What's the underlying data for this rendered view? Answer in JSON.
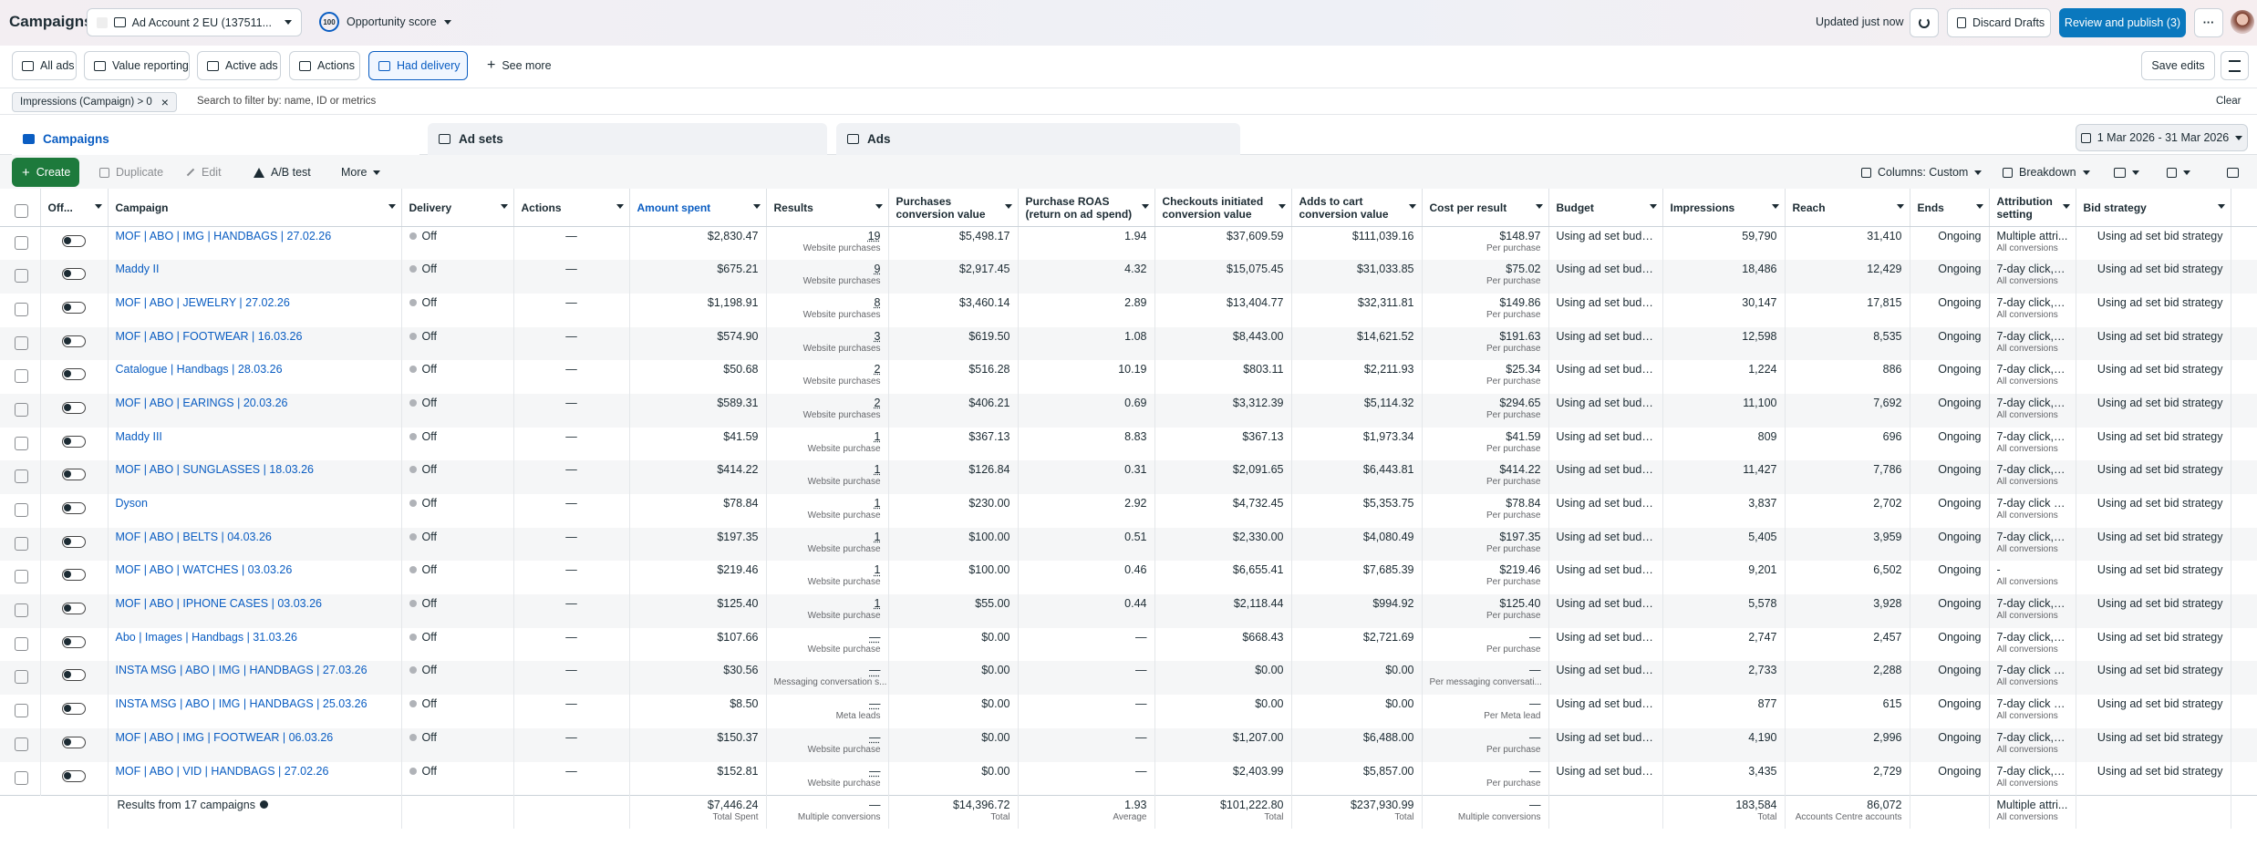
{
  "header": {
    "title": "Campaigns",
    "account": "Ad Account 2 EU (137511...",
    "score": "100",
    "opportunity": "Opportunity score",
    "updated": "Updated just now",
    "discard": "Discard Drafts",
    "review": "Review and publish (3)"
  },
  "toolbar": {
    "filters": [
      "All ads",
      "Value reporting",
      "Active ads",
      "Actions",
      "Had delivery"
    ],
    "see_more": "See more",
    "save": "Save edits"
  },
  "filter_bar": {
    "chip": "Impressions (Campaign) > 0",
    "placeholder": "Search to filter by: name, ID or metrics",
    "clear": "Clear"
  },
  "tabs": {
    "items": [
      "Campaigns",
      "Ad sets",
      "Ads"
    ],
    "date_range": "1 Mar 2026 - 31 Mar 2026"
  },
  "actions_bar": {
    "create": "Create",
    "duplicate": "Duplicate",
    "edit": "Edit",
    "ab_test": "A/B test",
    "more": "More",
    "columns": "Columns: Custom",
    "breakdown": "Breakdown"
  },
  "table": {
    "columns": [
      "Off...",
      "Campaign",
      "Delivery",
      "Actions",
      "Amount spent",
      "Results",
      "Purchases conversion value",
      "Purchase ROAS (return on ad spend)",
      "Checkouts initiated conversion value",
      "Adds to cart conversion value",
      "Cost per result",
      "Budget",
      "Impressions",
      "Reach",
      "Ends",
      "Attribution setting",
      "Bid strategy"
    ],
    "rows": [
      [
        "MOF | ABO | IMG | HANDBAGS | 27.02.26",
        "Off",
        "—",
        "$2,830.47",
        "19",
        "Website purchases",
        "$5,498.17",
        "1.94",
        "$37,609.59",
        "$111,039.16",
        "$148.97",
        "Per purchase",
        "Using ad set budget",
        "59,790",
        "31,410",
        "Ongoing",
        "Multiple attri...",
        "All conversions",
        "Using ad set bid strategy"
      ],
      [
        "Maddy II",
        "Off",
        "—",
        "$675.21",
        "9",
        "Website purchases",
        "$2,917.45",
        "4.32",
        "$15,075.45",
        "$31,033.85",
        "$75.02",
        "Per purchase",
        "Using ad set budget",
        "18,486",
        "12,429",
        "Ongoing",
        "7-day click, 1-...",
        "All conversions",
        "Using ad set bid strategy"
      ],
      [
        "MOF | ABO | JEWELRY | 27.02.26",
        "Off",
        "—",
        "$1,198.91",
        "8",
        "Website purchases",
        "$3,460.14",
        "2.89",
        "$13,404.77",
        "$32,311.81",
        "$149.86",
        "Per purchase",
        "Using ad set budget",
        "30,147",
        "17,815",
        "Ongoing",
        "7-day click, 1-...",
        "All conversions",
        "Using ad set bid strategy"
      ],
      [
        "MOF | ABO | FOOTWEAR | 16.03.26",
        "Off",
        "—",
        "$574.90",
        "3",
        "Website purchases",
        "$619.50",
        "1.08",
        "$8,443.00",
        "$14,621.52",
        "$191.63",
        "Per purchase",
        "Using ad set budget",
        "12,598",
        "8,535",
        "Ongoing",
        "7-day click, 1-...",
        "All conversions",
        "Using ad set bid strategy"
      ],
      [
        "Catalogue | Handbags | 28.03.26",
        "Off",
        "—",
        "$50.68",
        "2",
        "Website purchases",
        "$516.28",
        "10.19",
        "$803.11",
        "$2,211.93",
        "$25.34",
        "Per purchase",
        "Using ad set budget",
        "1,224",
        "886",
        "Ongoing",
        "7-day click, 1-...",
        "All conversions",
        "Using ad set bid strategy"
      ],
      [
        "MOF | ABO | EARINGS | 20.03.26",
        "Off",
        "—",
        "$589.31",
        "2",
        "Website purchases",
        "$406.21",
        "0.69",
        "$3,312.39",
        "$5,114.32",
        "$294.65",
        "Per purchase",
        "Using ad set budget",
        "11,100",
        "7,692",
        "Ongoing",
        "7-day click, 1-...",
        "All conversions",
        "Using ad set bid strategy"
      ],
      [
        "Maddy III",
        "Off",
        "—",
        "$41.59",
        "1",
        "Website purchase",
        "$367.13",
        "8.83",
        "$367.13",
        "$1,973.34",
        "$41.59",
        "Per purchase",
        "Using ad set budget",
        "809",
        "696",
        "Ongoing",
        "7-day click, 1-...",
        "All conversions",
        "Using ad set bid strategy"
      ],
      [
        "MOF | ABO | SUNGLASSES | 18.03.26",
        "Off",
        "—",
        "$414.22",
        "1",
        "Website purchase",
        "$126.84",
        "0.31",
        "$2,091.65",
        "$6,443.81",
        "$414.22",
        "Per purchase",
        "Using ad set budget",
        "11,427",
        "7,786",
        "Ongoing",
        "7-day click, 1-...",
        "All conversions",
        "Using ad set bid strategy"
      ],
      [
        "Dyson",
        "Off",
        "—",
        "$78.84",
        "1",
        "Website purchase",
        "$230.00",
        "2.92",
        "$4,732.45",
        "$5,353.75",
        "$78.84",
        "Per purchase",
        "Using ad set budget",
        "3,837",
        "2,702",
        "Ongoing",
        "7-day click or ...",
        "All conversions",
        "Using ad set bid strategy"
      ],
      [
        "MOF | ABO | BELTS | 04.03.26",
        "Off",
        "—",
        "$197.35",
        "1",
        "Website purchase",
        "$100.00",
        "0.51",
        "$2,330.00",
        "$4,080.49",
        "$197.35",
        "Per purchase",
        "Using ad set budget",
        "5,405",
        "3,959",
        "Ongoing",
        "7-day click, 1-...",
        "All conversions",
        "Using ad set bid strategy"
      ],
      [
        "MOF | ABO | WATCHES | 03.03.26",
        "Off",
        "—",
        "$219.46",
        "1",
        "Website purchase",
        "$100.00",
        "0.46",
        "$6,655.41",
        "$7,685.39",
        "$219.46",
        "Per purchase",
        "Using ad set budget",
        "9,201",
        "6,502",
        "Ongoing",
        "-",
        "All conversions",
        "Using ad set bid strategy"
      ],
      [
        "MOF | ABO | IPHONE CASES | 03.03.26",
        "Off",
        "—",
        "$125.40",
        "1",
        "Website purchase",
        "$55.00",
        "0.44",
        "$2,118.44",
        "$994.92",
        "$125.40",
        "Per purchase",
        "Using ad set budget",
        "5,578",
        "3,928",
        "Ongoing",
        "7-day click, 1-...",
        "All conversions",
        "Using ad set bid strategy"
      ],
      [
        "Abo | Images | Handbags | 31.03.26",
        "Off",
        "—",
        "$107.66",
        "—",
        "Website purchase",
        "$0.00",
        "—",
        "$668.43",
        "$2,721.69",
        "—",
        "Per purchase",
        "Using ad set budget",
        "2,747",
        "2,457",
        "Ongoing",
        "7-day click, 1-...",
        "All conversions",
        "Using ad set bid strategy"
      ],
      [
        "INSTA MSG | ABO | IMG | HANDBAGS | 27.03.26",
        "Off",
        "—",
        "$30.56",
        "—",
        "Messaging conversation s...",
        "$0.00",
        "—",
        "$0.00",
        "$0.00",
        "—",
        "Per messaging conversati...",
        "Using ad set budget",
        "2,733",
        "2,288",
        "Ongoing",
        "7-day click or ...",
        "All conversions",
        "Using ad set bid strategy"
      ],
      [
        "INSTA MSG | ABO | IMG | HANDBAGS | 25.03.26",
        "Off",
        "—",
        "$8.50",
        "—",
        "Meta leads",
        "$0.00",
        "—",
        "$0.00",
        "$0.00",
        "—",
        "Per Meta lead",
        "Using ad set budget",
        "877",
        "615",
        "Ongoing",
        "7-day click or ...",
        "All conversions",
        "Using ad set bid strategy"
      ],
      [
        "MOF | ABO | IMG | FOOTWEAR | 06.03.26",
        "Off",
        "—",
        "$150.37",
        "—",
        "Website purchase",
        "$0.00",
        "—",
        "$1,207.00",
        "$6,488.00",
        "—",
        "Per purchase",
        "Using ad set budget",
        "4,190",
        "2,996",
        "Ongoing",
        "7-day click, 1-...",
        "All conversions",
        "Using ad set bid strategy"
      ],
      [
        "MOF | ABO | VID | HANDBAGS | 27.02.26",
        "Off",
        "—",
        "$152.81",
        "—",
        "Website purchase",
        "$0.00",
        "—",
        "$2,403.99",
        "$5,857.00",
        "—",
        "Per purchase",
        "Using ad set budget",
        "3,435",
        "2,729",
        "Ongoing",
        "7-day click, 1-...",
        "All conversions",
        "Using ad set bid strategy"
      ]
    ],
    "totals": {
      "label": "Results from 17 campaigns",
      "spent": "$7,446.24",
      "spent_sub": "Total Spent",
      "results": "—",
      "results_sub": "Multiple conversions",
      "purchases": "$14,396.72",
      "purchases_sub": "Total",
      "roas": "1.93",
      "roas_sub": "Average",
      "checkouts": "$101,222.80",
      "checkouts_sub": "Total",
      "adds_to_cart": "$237,930.99",
      "adds_to_cart_sub": "Total",
      "cost": "—",
      "cost_sub": "Multiple conversions",
      "impressions": "183,584",
      "impressions_sub": "Total",
      "reach": "86,072",
      "reach_sub": "Accounts Centre accounts",
      "attribution": "Multiple attri...",
      "attribution_sub": "All conversions"
    }
  }
}
